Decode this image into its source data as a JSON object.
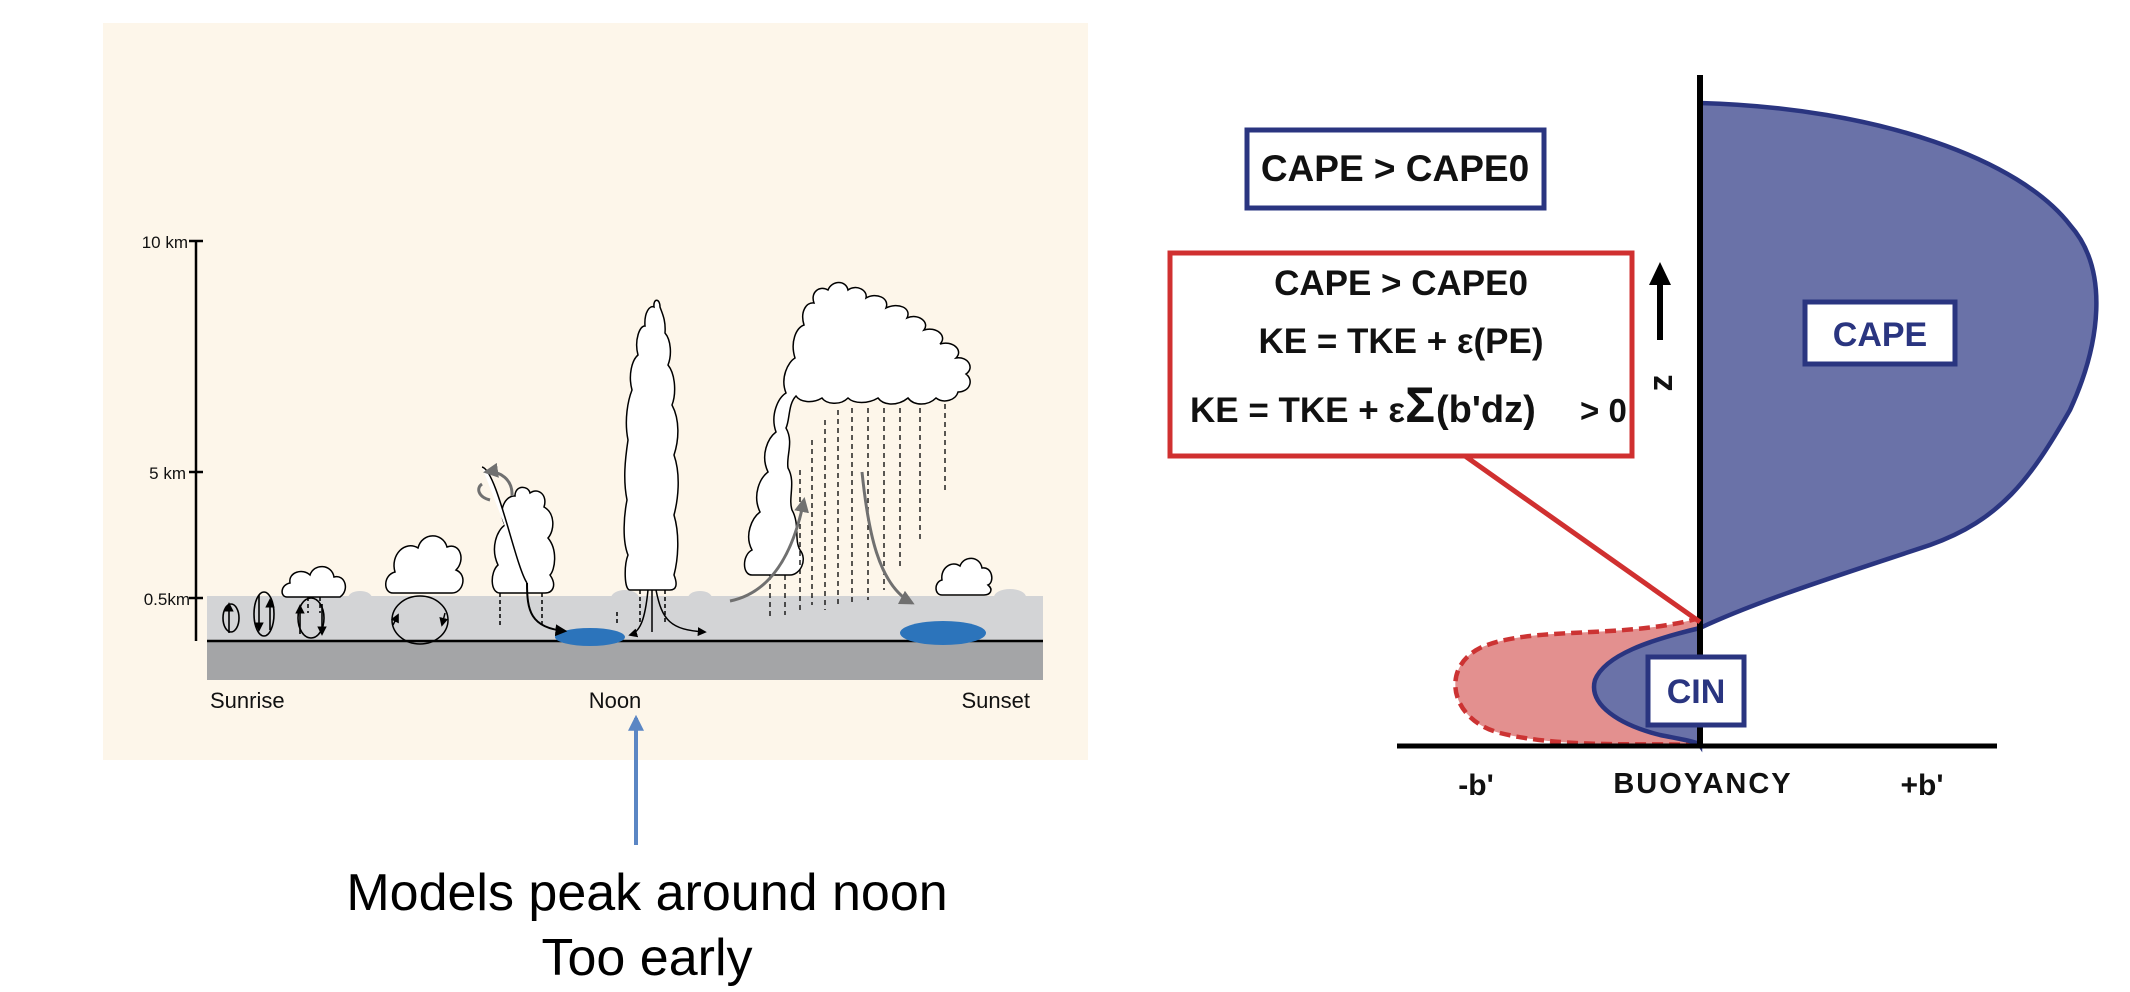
{
  "left_panel": {
    "height_labels": [
      "10 km",
      "5 km",
      "0.5km"
    ],
    "time_labels": [
      "Sunrise",
      "Noon",
      "Sunset"
    ],
    "caption": [
      "Models peak around noon",
      "Too early"
    ]
  },
  "right_panel": {
    "box_top": "CAPE > CAPE0",
    "box_eq_line1": "CAPE > CAPE0",
    "box_eq_line2": "KE = TKE + ε(PE)",
    "box_eq_line3_a": "KE = TKE + ε",
    "box_eq_line3_sum": "Σ",
    "box_eq_line3_b": "(b'dz)",
    "box_eq_line3_c": "> 0",
    "z_label": "z",
    "cape_label": "CAPE",
    "cin_label": "CIN",
    "axis_neg": "-b'",
    "axis_center": "BUOYANCY",
    "axis_pos": "+b'"
  },
  "colors": {
    "panel_bg": "#fdf6ea",
    "ground_dark": "#a4a5a7",
    "boundary_layer": "#d3d4d6",
    "puddle": "#2c74bb",
    "noon_arrow": "#5b86c4",
    "cape_fill": "#6a72a8",
    "cape_stroke": "#2a3580",
    "cin_red_fill": "#e3908f",
    "cin_red_stroke": "#cc3333",
    "box_red": "#d03030",
    "box_blue": "#2a3580"
  }
}
